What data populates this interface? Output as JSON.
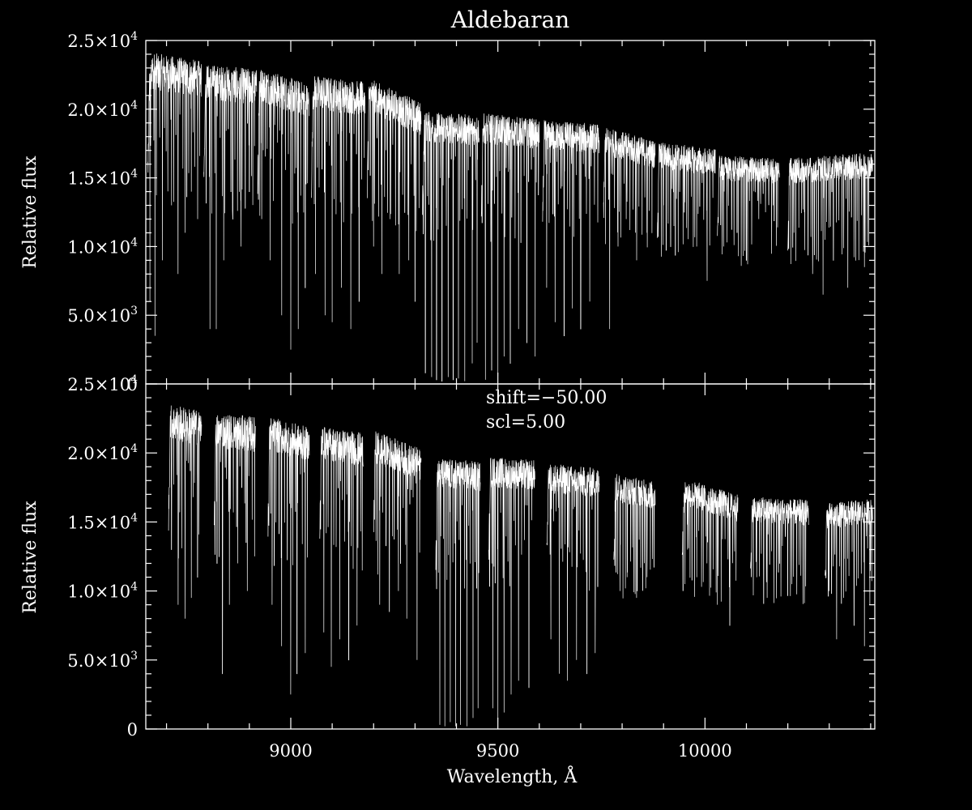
{
  "chart_data": {
    "type": "line",
    "title": "Aldebaran",
    "xlabel": "Wavelength, Å",
    "xlim": [
      8650,
      10410
    ],
    "x_ticks": [
      9000,
      9500,
      10000
    ],
    "x_tick_labels": [
      "9000",
      "9500",
      "10000"
    ],
    "panels": [
      {
        "name": "top",
        "ylabel": "Relative flux",
        "ylim": [
          0,
          25000
        ],
        "y_ticks": [
          0,
          5000,
          10000,
          15000,
          20000,
          25000
        ],
        "y_tick_labels": [
          {
            "mant": "0",
            "exp": ""
          },
          {
            "mant": "5.0×10",
            "exp": "3"
          },
          {
            "mant": "1.0×10",
            "exp": "4"
          },
          {
            "mant": "1.5×10",
            "exp": "4"
          },
          {
            "mant": "2.0×10",
            "exp": "4"
          },
          {
            "mant": "2.5×10",
            "exp": "4"
          }
        ],
        "annotations": [],
        "segments": [
          {
            "start": 8655,
            "end": 8785,
            "level": 22500,
            "slope": -0.5,
            "lines": [
              [
                8660,
                6000
              ],
              [
                8672,
                3500
              ],
              [
                8690,
                9000
              ],
              [
                8712,
                13000
              ],
              [
                8728,
                8000
              ],
              [
                8745,
                11000
              ],
              [
                8760,
                14000
              ],
              [
                8775,
                12000
              ]
            ]
          },
          {
            "start": 8790,
            "end": 8918,
            "level": 21800,
            "slope": -0.3,
            "lines": [
              [
                8805,
                4000
              ],
              [
                8820,
                4000
              ],
              [
                8838,
                9000
              ],
              [
                8860,
                12000
              ],
              [
                8880,
                10000
              ],
              [
                8900,
                14000
              ]
            ]
          },
          {
            "start": 8920,
            "end": 9045,
            "level": 21200,
            "slope": -1.0,
            "lines": [
              [
                8930,
                12000
              ],
              [
                8950,
                9000
              ],
              [
                8978,
                5000
              ],
              [
                9000,
                2500
              ],
              [
                9018,
                4000
              ],
              [
                9035,
                7000
              ]
            ]
          },
          {
            "start": 9050,
            "end": 9180,
            "level": 21000,
            "slope": -0.4,
            "lines": [
              [
                9060,
                8000
              ],
              [
                9083,
                5000
              ],
              [
                9100,
                4500
              ],
              [
                9122,
                7000
              ],
              [
                9145,
                4000
              ],
              [
                9165,
                6000
              ]
            ]
          },
          {
            "start": 9185,
            "end": 9315,
            "level": 20200,
            "slope": -1.4,
            "lines": [
              [
                9200,
                10000
              ],
              [
                9220,
                8000
              ],
              [
                9240,
                12000
              ],
              [
                9262,
                8000
              ],
              [
                9285,
                9000
              ],
              [
                9300,
                6000
              ]
            ]
          },
          {
            "start": 9318,
            "end": 9455,
            "level": 18600,
            "slope": -0.2,
            "lines": [
              [
                9325,
                800
              ],
              [
                9340,
                500
              ],
              [
                9352,
                300
              ],
              [
                9365,
                200
              ],
              [
                9380,
                500
              ],
              [
                9392,
                300
              ],
              [
                9405,
                400
              ],
              [
                9420,
                200
              ],
              [
                9438,
                1500
              ],
              [
                9450,
                3000
              ]
            ]
          },
          {
            "start": 9460,
            "end": 9600,
            "level": 18400,
            "slope": -0.3,
            "lines": [
              [
                9470,
                300
              ],
              [
                9485,
                1000
              ],
              [
                9500,
                600
              ],
              [
                9515,
                2000
              ],
              [
                9530,
                1500
              ],
              [
                9550,
                4000
              ],
              [
                9570,
                3000
              ],
              [
                9590,
                2000
              ]
            ]
          },
          {
            "start": 9608,
            "end": 9745,
            "level": 18000,
            "slope": -0.2,
            "lines": [
              [
                9618,
                7000
              ],
              [
                9638,
                4500
              ],
              [
                9660,
                3500
              ],
              [
                9680,
                5500
              ],
              [
                9700,
                4000
              ],
              [
                9722,
                6000
              ]
            ]
          },
          {
            "start": 9755,
            "end": 9880,
            "level": 17200,
            "slope": -0.8,
            "lines": [
              [
                9770,
                4000
              ],
              [
                9790,
                10000
              ],
              [
                9810,
                12000
              ],
              [
                9835,
                9000
              ],
              [
                9860,
                11000
              ]
            ]
          },
          {
            "start": 9885,
            "end": 10025,
            "level": 16400,
            "slope": -0.4,
            "lines": [
              [
                9900,
                13000
              ],
              [
                9925,
                11500
              ],
              [
                9950,
                12500
              ],
              [
                9980,
                10000
              ],
              [
                10005,
                7500
              ]
            ]
          },
          {
            "start": 10030,
            "end": 10180,
            "level": 15600,
            "slope": -0.1,
            "lines": [
              [
                10045,
                10000
              ],
              [
                10070,
                12500
              ],
              [
                10100,
                9000
              ],
              [
                10130,
                12000
              ],
              [
                10165,
                13000
              ]
            ]
          },
          {
            "start": 10200,
            "end": 10405,
            "level": 15700,
            "slope": 0.2,
            "lines": [
              [
                10215,
                11000
              ],
              [
                10240,
                12500
              ],
              [
                10260,
                8000
              ],
              [
                10285,
                6500
              ],
              [
                10310,
                9000
              ],
              [
                10345,
                7000
              ],
              [
                10385,
                8500
              ]
            ]
          }
        ]
      },
      {
        "name": "bottom",
        "ylabel": "Relative flux",
        "ylim": [
          0,
          25000
        ],
        "y_ticks": [
          0,
          5000,
          10000,
          15000,
          20000,
          25000
        ],
        "y_tick_labels": [
          {
            "mant": "0",
            "exp": ""
          },
          {
            "mant": "5.0×10",
            "exp": "3"
          },
          {
            "mant": "1.0×10",
            "exp": "4"
          },
          {
            "mant": "1.5×10",
            "exp": "4"
          },
          {
            "mant": "2.0×10",
            "exp": "4"
          },
          {
            "mant": "2.5×10",
            "exp": "4"
          }
        ],
        "annotations": [
          "shift=−50.00",
          "scl=5.00"
        ],
        "segments": [
          {
            "start": 8705,
            "end": 8785,
            "level": 22000,
            "slope": -0.6,
            "lines": [
              [
                8712,
                13000
              ],
              [
                8728,
                9000
              ],
              [
                8745,
                8000
              ],
              [
                8760,
                9500
              ],
              [
                8775,
                11000
              ]
            ]
          },
          {
            "start": 8815,
            "end": 8915,
            "level": 21500,
            "slope": -0.3,
            "lines": [
              [
                8822,
                12000
              ],
              [
                8835,
                4000
              ],
              [
                8852,
                9000
              ],
              [
                8872,
                12000
              ],
              [
                8895,
                10000
              ]
            ]
          },
          {
            "start": 8945,
            "end": 9045,
            "level": 21000,
            "slope": -0.8,
            "lines": [
              [
                8955,
                9000
              ],
              [
                8978,
                6000
              ],
              [
                9000,
                2500
              ],
              [
                9015,
                4000
              ],
              [
                9035,
                5500
              ]
            ]
          },
          {
            "start": 9070,
            "end": 9175,
            "level": 20500,
            "slope": -0.5,
            "lines": [
              [
                9080,
                7000
              ],
              [
                9098,
                4500
              ],
              [
                9118,
                6500
              ],
              [
                9140,
                5000
              ],
              [
                9160,
                7500
              ]
            ]
          },
          {
            "start": 9200,
            "end": 9315,
            "level": 19800,
            "slope": -1.2,
            "lines": [
              [
                9215,
                9000
              ],
              [
                9238,
                8500
              ],
              [
                9260,
                10000
              ],
              [
                9280,
                8000
              ],
              [
                9305,
                5000
              ]
            ]
          },
          {
            "start": 9350,
            "end": 9458,
            "level": 18400,
            "slope": -0.2,
            "lines": [
              [
                9322,
                700
              ],
              [
                9360,
                300
              ],
              [
                9372,
                200
              ],
              [
                9385,
                500
              ],
              [
                9398,
                200
              ],
              [
                9410,
                300
              ],
              [
                9425,
                200
              ],
              [
                9440,
                800
              ],
              [
                9452,
                1500
              ]
            ]
          },
          {
            "start": 9478,
            "end": 9590,
            "level": 18500,
            "slope": -0.2,
            "lines": [
              [
                9488,
                1500
              ],
              [
                9500,
                500
              ],
              [
                9515,
                1200
              ],
              [
                9532,
                2500
              ],
              [
                9550,
                3500
              ],
              [
                9575,
                3000
              ]
            ]
          },
          {
            "start": 9618,
            "end": 9745,
            "level": 18000,
            "slope": -0.3,
            "lines": [
              [
                9628,
                6500
              ],
              [
                9648,
                4000
              ],
              [
                9668,
                3500
              ],
              [
                9690,
                5000
              ],
              [
                9715,
                4000
              ],
              [
                9735,
                5500
              ]
            ]
          },
          {
            "start": 9780,
            "end": 9880,
            "level": 17200,
            "slope": -0.6,
            "lines": [
              [
                9795,
                10000
              ],
              [
                9812,
                11000
              ],
              [
                9835,
                9500
              ],
              [
                9860,
                11000
              ]
            ]
          },
          {
            "start": 9945,
            "end": 10080,
            "level": 16600,
            "slope": -0.9,
            "lines": [
              [
                9958,
                13000
              ],
              [
                9980,
                11000
              ],
              [
                10005,
                12000
              ],
              [
                10030,
                9000
              ],
              [
                10060,
                7500
              ]
            ]
          },
          {
            "start": 10110,
            "end": 10250,
            "level": 15800,
            "slope": -0.2,
            "lines": [
              [
                10125,
                11000
              ],
              [
                10150,
                9500
              ],
              [
                10180,
                12000
              ],
              [
                10210,
                10500
              ],
              [
                10240,
                13000
              ]
            ]
          },
          {
            "start": 10290,
            "end": 10405,
            "level": 15600,
            "slope": 0.3,
            "lines": [
              [
                10300,
                10000
              ],
              [
                10318,
                6500
              ],
              [
                10335,
                9500
              ],
              [
                10360,
                7500
              ],
              [
                10385,
                6000
              ],
              [
                10398,
                9000
              ]
            ]
          }
        ]
      }
    ]
  }
}
